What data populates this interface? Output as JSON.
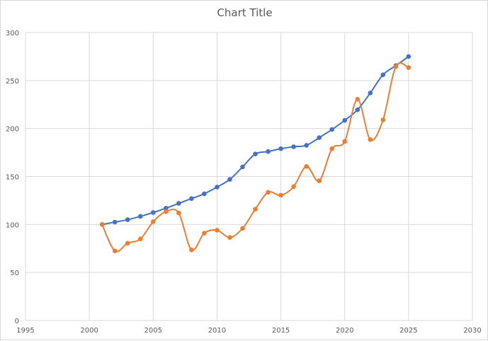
{
  "chart_data": {
    "type": "scatter",
    "title": "Chart Title",
    "xlabel": "",
    "ylabel": "",
    "xlim": [
      1995,
      2030
    ],
    "ylim": [
      0,
      300
    ],
    "x_ticks": [
      1995,
      2000,
      2005,
      2010,
      2015,
      2020,
      2025,
      2030
    ],
    "y_ticks": [
      0,
      50,
      100,
      150,
      200,
      250,
      300
    ],
    "grid": true,
    "legend": "none",
    "series": [
      {
        "color": "#4472c4",
        "smooth": true,
        "x": [
          2001,
          2002,
          2003,
          2004,
          2005,
          2006,
          2007,
          2008,
          2009,
          2010,
          2011,
          2012,
          2013,
          2014,
          2015,
          2016,
          2017,
          2018,
          2019,
          2020,
          2021,
          2022,
          2023,
          2024,
          2025
        ],
        "y": [
          100,
          102.5,
          105,
          108.5,
          112.5,
          117,
          122,
          127,
          132,
          139,
          147,
          160,
          173.5,
          176,
          179,
          181,
          182.5,
          190.5,
          199,
          208.5,
          219.5,
          237,
          256,
          265.5,
          275
        ]
      },
      {
        "color": "#ed7d31",
        "smooth": true,
        "x": [
          2001,
          2002,
          2003,
          2004,
          2005,
          2006,
          2007,
          2008,
          2009,
          2010,
          2011,
          2012,
          2013,
          2014,
          2015,
          2016,
          2017,
          2018,
          2019,
          2020,
          2021,
          2022,
          2023,
          2024,
          2025
        ],
        "y": [
          100,
          72.5,
          80.5,
          85,
          103,
          113.5,
          112,
          73.5,
          91,
          94,
          86.5,
          96,
          116,
          133.5,
          130.5,
          139.5,
          160.5,
          145.5,
          179,
          186.5,
          230.5,
          188.5,
          209,
          264.5,
          263.5
        ]
      }
    ]
  }
}
